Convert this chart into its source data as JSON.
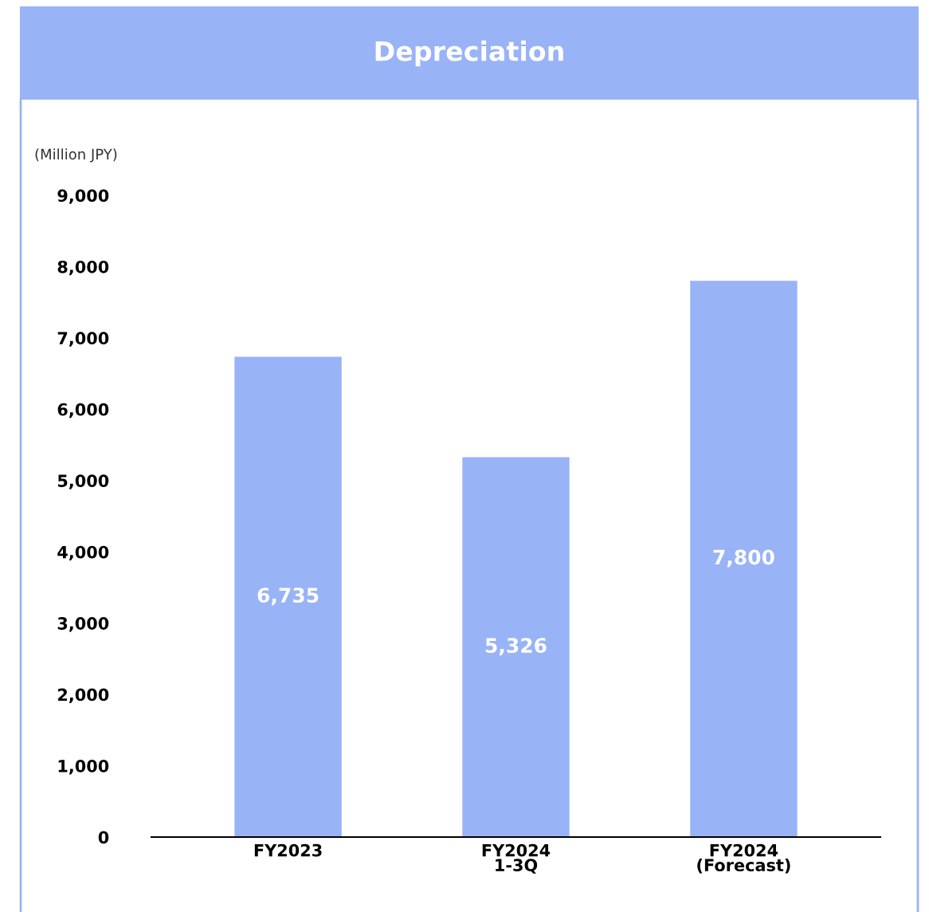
{
  "chart_data": {
    "type": "bar",
    "title": "Depreciation",
    "ylabel": "(Million JPY)",
    "categories": [
      "FY2023",
      "FY2024\n1-3Q",
      "FY2024\n(Forecast)"
    ],
    "values": [
      6735,
      5326,
      7800
    ],
    "color": "#99b3f7",
    "ylim": [
      0,
      9000
    ],
    "yticks": [
      {
        "value": 0,
        "label": "0"
      },
      {
        "value": 1000,
        "label": "1,000"
      },
      {
        "value": 2000,
        "label": "2,000"
      },
      {
        "value": 3000,
        "label": "3,000"
      },
      {
        "value": 4000,
        "label": "4,000"
      },
      {
        "value": 5000,
        "label": "5,000"
      },
      {
        "value": 6000,
        "label": "6,000"
      },
      {
        "value": 7000,
        "label": "7,000"
      },
      {
        "value": 8000,
        "label": "8,000"
      },
      {
        "value": 9000,
        "label": "9,000"
      }
    ],
    "value_labels": [
      "6,735",
      "5,326",
      "7,800"
    ],
    "grid": false,
    "legend": false
  }
}
